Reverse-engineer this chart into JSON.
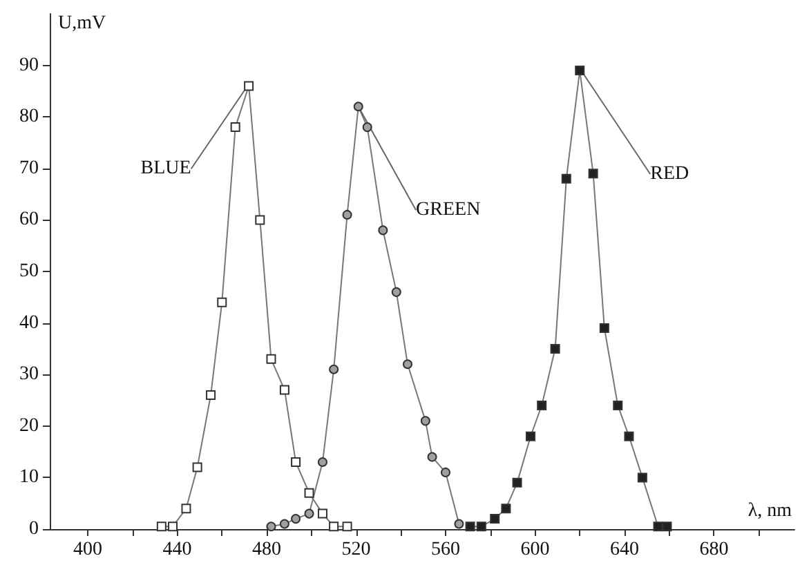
{
  "chart_data": {
    "type": "line",
    "xlabel": "λ, nm",
    "ylabel": "U,mV",
    "xlim": [
      383,
      716
    ],
    "ylim": [
      0,
      100
    ],
    "xticks": [
      400,
      {
        "value": 420,
        "label": null
      },
      440,
      {
        "value": 460,
        "label": null
      },
      480,
      {
        "value": 500,
        "label": null
      },
      520,
      {
        "value": 540,
        "label": null
      },
      560,
      {
        "value": 580,
        "label": null
      },
      600,
      {
        "value": 620,
        "label": null
      },
      640,
      {
        "value": 660,
        "label": null
      },
      680,
      {
        "value": 700,
        "label": null
      }
    ],
    "yticks": [
      0,
      10,
      20,
      30,
      40,
      50,
      60,
      70,
      80,
      90
    ],
    "grid": false,
    "legend": false,
    "line_style": "solid",
    "series": [
      {
        "name": "BLUE",
        "color": "#ffffff",
        "marker": "square",
        "x": [
          433,
          438,
          444,
          449,
          455,
          460,
          466,
          472,
          477,
          482,
          488,
          493,
          499,
          505,
          510,
          516
        ],
        "values": [
          0.5,
          0.5,
          4,
          12,
          26,
          44,
          78,
          86,
          60,
          33,
          27,
          13,
          7,
          3,
          0.5,
          0.5
        ]
      },
      {
        "name": "GREEN",
        "color": "#a0a0a0",
        "marker": "circle",
        "x": [
          482,
          488,
          493,
          499,
          505,
          510,
          516,
          521,
          525,
          532,
          538,
          543,
          551,
          554,
          560,
          566
        ],
        "values": [
          0.5,
          1,
          2,
          3,
          13,
          31,
          61,
          82,
          78,
          58,
          46,
          32,
          21,
          14,
          11,
          1
        ]
      },
      {
        "name": "RED",
        "color": "#222222",
        "marker": "square",
        "x": [
          571,
          576,
          582,
          587,
          592,
          598,
          603,
          609,
          614,
          620,
          626,
          631,
          637,
          642,
          648,
          655,
          659
        ],
        "values": [
          0.5,
          0.5,
          2,
          4,
          9,
          18,
          24,
          35,
          68,
          89,
          69,
          39,
          24,
          18,
          10,
          0.5,
          0.5
        ]
      }
    ]
  }
}
